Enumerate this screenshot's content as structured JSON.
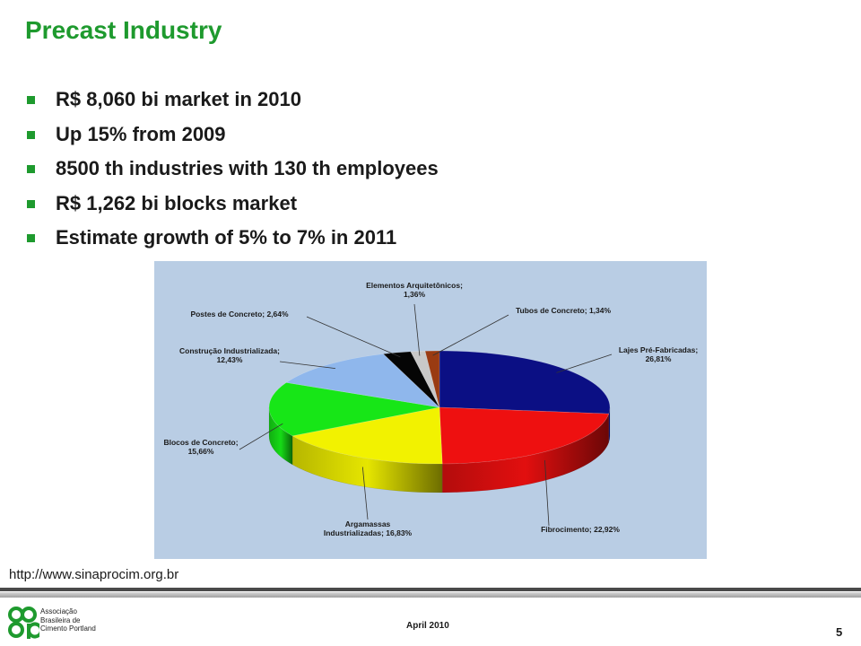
{
  "slide": {
    "title": "Precast Industry",
    "bullets": [
      "R$ 8,060 bi market in 2010",
      "Up 15% from 2009",
      "8500 th industries with 130 th employees",
      "R$ 1,262 bi blocks market",
      "Estimate growth of 5% to 7% in 2011"
    ],
    "source_url": "http://www.sinaprocim.org.br",
    "footer_date": "April 2010",
    "page_number": "5",
    "logo_text": "Associação\nBrasileira de\nCimento Portland"
  },
  "colors": {
    "title_green": "#1e9a2e",
    "bullet_green": "#1e9a2e",
    "chart_background": "#b9cde4"
  },
  "chart_data": {
    "type": "pie",
    "three_d": true,
    "slices": [
      {
        "label": "Lajes Pré-Fabricadas; 26,81%",
        "value": 26.81,
        "color": "#0b0f84"
      },
      {
        "label": "Fibrocimento; 22,92%",
        "value": 22.92,
        "color": "#ee1010"
      },
      {
        "label": "Argamassas Industrializadas; 16,83%",
        "value": 16.83,
        "color": "#f2f200"
      },
      {
        "label": "Blocos de Concreto; 15,66%",
        "value": 15.66,
        "color": "#17e617"
      },
      {
        "label": "Construção Industrializada; 12,43%",
        "value": 12.43,
        "color": "#8fb7ec"
      },
      {
        "label": "Postes de Concreto; 2,64%",
        "value": 2.64,
        "color": "#050505"
      },
      {
        "label": "Elementos Arquitetônicos; 1,36%",
        "value": 1.36,
        "color": "#c8c8c8"
      },
      {
        "label": "Tubos de Concreto; 1,34%",
        "value": 1.34,
        "color": "#9a3b12"
      }
    ],
    "label_lines": [
      [
        "Lajes Pré-Fabricadas;",
        "26,81%"
      ],
      [
        "Fibrocimento; 22,92%"
      ],
      [
        "Argamassas",
        "Industrializadas; 16,83%"
      ],
      [
        "Blocos de Concreto;",
        "15,66%"
      ],
      [
        "Construção Industrializada;",
        "12,43%"
      ],
      [
        "Postes de Concreto; 2,64%"
      ],
      [
        "Elementos Arquitetônicos;",
        "1,36%"
      ],
      [
        "Tubos de Concreto; 1,34%"
      ]
    ]
  }
}
